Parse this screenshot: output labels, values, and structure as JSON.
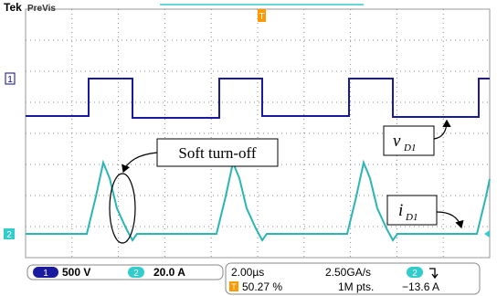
{
  "header": {
    "brand": "Tek",
    "mode": "PreVis"
  },
  "markers": {
    "ch1": "1",
    "ch2": "2",
    "trigger": "T"
  },
  "annotations": {
    "soft_turn_off": "Soft turn-off",
    "v_label": {
      "main": "v",
      "sub": "D1"
    },
    "i_label": {
      "main": "i",
      "sub": "D1"
    }
  },
  "status": {
    "ch1": {
      "number": "1",
      "scale": "500 V"
    },
    "ch2": {
      "number": "2",
      "scale": "20.0 A"
    },
    "timebase": "2.00µs",
    "trigger_position": "50.27 %",
    "trigger_icon": "T",
    "sample_rate": "2.50GA/s",
    "record_length": "1M pts.",
    "trigger_source": "2",
    "trigger_level": "−13.6 A"
  }
}
